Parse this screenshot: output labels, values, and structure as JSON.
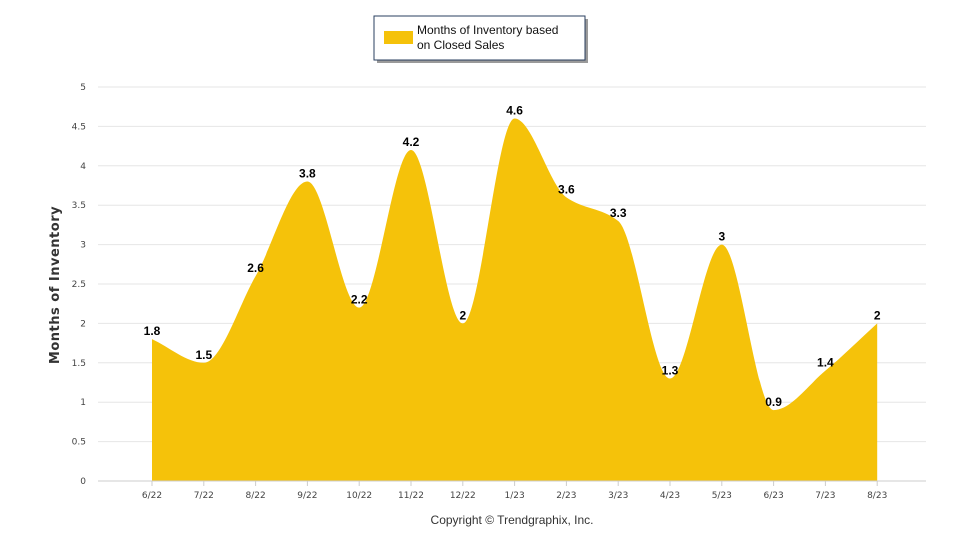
{
  "chart_data": {
    "type": "area",
    "categories": [
      "6/22",
      "7/22",
      "8/22",
      "9/22",
      "10/22",
      "11/22",
      "12/22",
      "1/23",
      "2/23",
      "3/23",
      "4/23",
      "5/23",
      "6/23",
      "7/23",
      "8/23"
    ],
    "series": [
      {
        "name": "Months of Inventory based on Closed Sales",
        "values": [
          1.8,
          1.5,
          2.6,
          3.8,
          2.2,
          4.2,
          2,
          4.6,
          3.6,
          3.3,
          1.3,
          3,
          0.9,
          1.4,
          2
        ]
      }
    ],
    "legend_lines": [
      "Months of Inventory based",
      "on Closed Sales"
    ],
    "title": "",
    "xlabel": "",
    "ylabel": "Months of Inventory",
    "ylim": [
      0,
      5
    ],
    "yticks": [
      0,
      0.5,
      1,
      1.5,
      2,
      2.5,
      3,
      3.5,
      4,
      4.5,
      5
    ],
    "grid": true,
    "legend_position": "top-center",
    "fill_color": "#F5C20A",
    "grid_color": "#e6e6e6"
  },
  "footer": {
    "copyright": "Copyright © Trendgraphix, Inc."
  }
}
